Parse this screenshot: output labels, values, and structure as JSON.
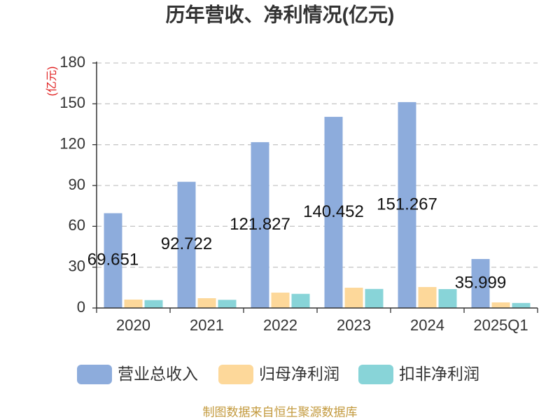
{
  "chart_data": {
    "type": "bar",
    "title": "历年营收、净利情况(亿元)",
    "xlabel": "",
    "ylabel": "(亿元)",
    "categories": [
      "2020",
      "2021",
      "2022",
      "2023",
      "2024",
      "2025Q1"
    ],
    "ylim": [
      0,
      180
    ],
    "yticks": [
      0,
      30,
      60,
      90,
      120,
      150,
      180
    ],
    "grid": true,
    "legend": "bottom",
    "series": [
      {
        "name": "营业总收入",
        "values": [
          69.651,
          92.722,
          121.827,
          140.452,
          151.267,
          35.999
        ],
        "color": "#8dacdc",
        "labels": true
      },
      {
        "name": "归母净利润",
        "values": [
          6.2,
          7.2,
          11.3,
          14.9,
          15.4,
          4.1
        ],
        "color": "#fdd89a",
        "labels": false
      },
      {
        "name": "扣非净利润",
        "values": [
          5.8,
          6.0,
          10.4,
          14.0,
          13.9,
          3.7
        ],
        "color": "#88d4d8",
        "labels": false
      }
    ]
  },
  "colors": {
    "ylabel": "#e02020",
    "footer": "#c39a3e"
  },
  "footer": {
    "text": "制图数据来自恒生聚源数据库"
  }
}
